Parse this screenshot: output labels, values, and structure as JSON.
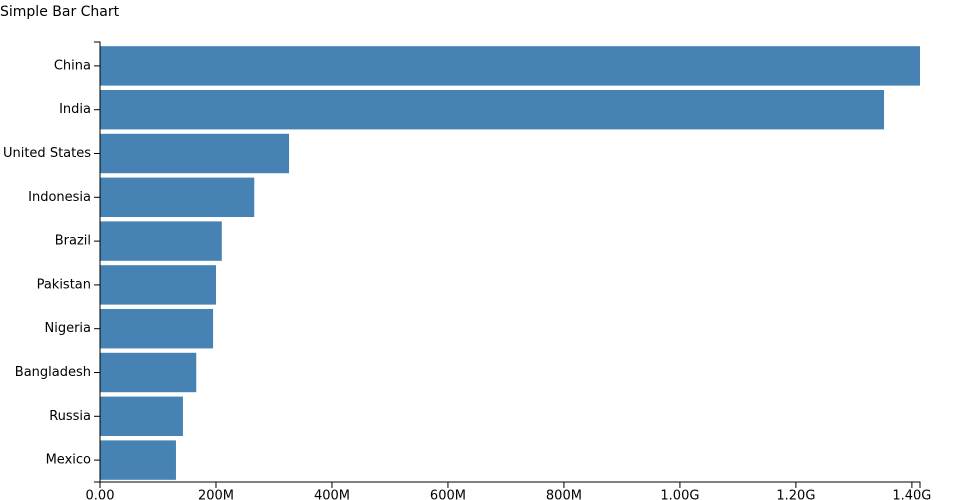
{
  "chart_data": {
    "type": "bar",
    "orientation": "horizontal",
    "title": "Simple Bar Chart",
    "categories": [
      "China",
      "India",
      "United States",
      "Indonesia",
      "Brazil",
      "Pakistan",
      "Nigeria",
      "Bangladesh",
      "Russia",
      "Mexico"
    ],
    "values": [
      1414000000,
      1352000000,
      326000000,
      266000000,
      210000000,
      200000000,
      195000000,
      166000000,
      143000000,
      131000000
    ],
    "color": "#4682b4",
    "xlim": [
      0,
      1414000000
    ],
    "xticks": [
      {
        "value": 0,
        "label": "0.00"
      },
      {
        "value": 200000000,
        "label": "200M"
      },
      {
        "value": 400000000,
        "label": "400M"
      },
      {
        "value": 600000000,
        "label": "600M"
      },
      {
        "value": 800000000,
        "label": "800M"
      },
      {
        "value": 1000000000,
        "label": "1.00G"
      },
      {
        "value": 1200000000,
        "label": "1.20G"
      },
      {
        "value": 1400000000,
        "label": "1.40G"
      }
    ],
    "grid": false
  }
}
